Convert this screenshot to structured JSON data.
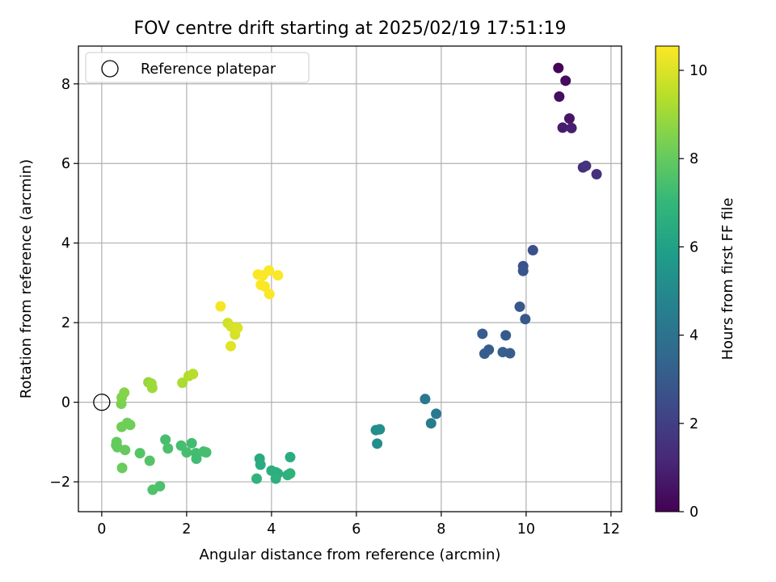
{
  "chart_data": {
    "type": "scatter",
    "title": "FOV centre drift starting at 2025/02/19 17:51:19",
    "xlabel": "Angular distance from reference (arcmin)",
    "ylabel": "Rotation from reference (arcmin)",
    "xlim": [
      -0.55,
      12.25
    ],
    "ylim": [
      -2.75,
      8.95
    ],
    "xticks": [
      0,
      2,
      4,
      6,
      8,
      10,
      12
    ],
    "xtick_labels": [
      "0",
      "2",
      "4",
      "6",
      "8",
      "10",
      "12"
    ],
    "yticks": [
      -2,
      0,
      2,
      4,
      6,
      8
    ],
    "ytick_labels": [
      "−2",
      "0",
      "2",
      "4",
      "6",
      "8"
    ],
    "grid": true,
    "legend": {
      "placement": "upper-left",
      "entries": [
        "Reference platepar"
      ]
    },
    "reference_point": {
      "x": 0,
      "y": 0,
      "name": "Reference platepar"
    },
    "colorbar": {
      "label": "Hours from first FF file",
      "range": [
        0,
        10.55
      ],
      "ticks": [
        0,
        2,
        4,
        6,
        8,
        10
      ],
      "tick_labels": [
        "0",
        "2",
        "4",
        "6",
        "8",
        "10"
      ],
      "colormap": [
        "#440154",
        "#482878",
        "#3e4989",
        "#31688e",
        "#26828e",
        "#1f9e89",
        "#35b779",
        "#6ece58",
        "#b5de2b",
        "#fde725"
      ]
    },
    "points": [
      {
        "x": 10.76,
        "y": 8.4,
        "c": 0.1
      },
      {
        "x": 10.93,
        "y": 8.08,
        "c": 0.3
      },
      {
        "x": 10.78,
        "y": 7.68,
        "c": 0.4
      },
      {
        "x": 11.02,
        "y": 7.13,
        "c": 0.6
      },
      {
        "x": 10.86,
        "y": 6.9,
        "c": 0.8
      },
      {
        "x": 11.07,
        "y": 6.89,
        "c": 0.9
      },
      {
        "x": 11.34,
        "y": 5.9,
        "c": 1.4
      },
      {
        "x": 11.41,
        "y": 5.94,
        "c": 1.6
      },
      {
        "x": 11.66,
        "y": 5.73,
        "c": 1.5
      },
      {
        "x": 10.16,
        "y": 3.82,
        "c": 2.6
      },
      {
        "x": 9.93,
        "y": 3.42,
        "c": 2.7
      },
      {
        "x": 9.93,
        "y": 3.3,
        "c": 2.8
      },
      {
        "x": 9.85,
        "y": 2.4,
        "c": 2.9
      },
      {
        "x": 9.98,
        "y": 2.09,
        "c": 2.9
      },
      {
        "x": 8.97,
        "y": 1.72,
        "c": 3.1
      },
      {
        "x": 9.52,
        "y": 1.68,
        "c": 3.0
      },
      {
        "x": 9.12,
        "y": 1.32,
        "c": 3.1
      },
      {
        "x": 9.02,
        "y": 1.22,
        "c": 3.1
      },
      {
        "x": 9.45,
        "y": 1.26,
        "c": 3.2
      },
      {
        "x": 9.62,
        "y": 1.23,
        "c": 3.1
      },
      {
        "x": 7.62,
        "y": 0.08,
        "c": 4.2
      },
      {
        "x": 7.88,
        "y": -0.29,
        "c": 4.3
      },
      {
        "x": 7.76,
        "y": -0.53,
        "c": 4.4
      },
      {
        "x": 6.46,
        "y": -0.7,
        "c": 5.1
      },
      {
        "x": 6.55,
        "y": -0.68,
        "c": 5.2
      },
      {
        "x": 6.49,
        "y": -1.04,
        "c": 5.2
      },
      {
        "x": 3.72,
        "y": -1.42,
        "c": 6.4
      },
      {
        "x": 3.74,
        "y": -1.57,
        "c": 6.5
      },
      {
        "x": 4.44,
        "y": -1.38,
        "c": 6.5
      },
      {
        "x": 4.0,
        "y": -1.72,
        "c": 6.6
      },
      {
        "x": 4.1,
        "y": -1.76,
        "c": 6.6
      },
      {
        "x": 4.15,
        "y": -1.79,
        "c": 6.6
      },
      {
        "x": 4.38,
        "y": -1.83,
        "c": 6.7
      },
      {
        "x": 4.44,
        "y": -1.79,
        "c": 6.8
      },
      {
        "x": 3.65,
        "y": -1.92,
        "c": 6.8
      },
      {
        "x": 4.1,
        "y": -1.92,
        "c": 6.7
      },
      {
        "x": 1.5,
        "y": -0.94,
        "c": 7.4
      },
      {
        "x": 1.56,
        "y": -1.16,
        "c": 7.5
      },
      {
        "x": 1.87,
        "y": -1.09,
        "c": 7.4
      },
      {
        "x": 2.0,
        "y": -1.26,
        "c": 7.4
      },
      {
        "x": 2.12,
        "y": -1.03,
        "c": 7.3
      },
      {
        "x": 2.22,
        "y": -1.28,
        "c": 7.3
      },
      {
        "x": 2.4,
        "y": -1.24,
        "c": 7.4
      },
      {
        "x": 2.46,
        "y": -1.26,
        "c": 7.4
      },
      {
        "x": 2.23,
        "y": -1.42,
        "c": 7.3
      },
      {
        "x": 1.37,
        "y": -2.11,
        "c": 7.5
      },
      {
        "x": 1.2,
        "y": -2.2,
        "c": 7.6
      },
      {
        "x": 0.9,
        "y": -1.28,
        "c": 7.7
      },
      {
        "x": 1.13,
        "y": -1.47,
        "c": 7.7
      },
      {
        "x": 0.35,
        "y": -1.0,
        "c": 8.0
      },
      {
        "x": 0.34,
        "y": -1.08,
        "c": 8.0
      },
      {
        "x": 0.37,
        "y": -1.13,
        "c": 8.0
      },
      {
        "x": 0.55,
        "y": -1.2,
        "c": 8.0
      },
      {
        "x": 0.48,
        "y": -1.65,
        "c": 8.1
      },
      {
        "x": 0.47,
        "y": -0.62,
        "c": 8.2
      },
      {
        "x": 0.6,
        "y": -0.52,
        "c": 8.2
      },
      {
        "x": 0.67,
        "y": -0.57,
        "c": 8.2
      },
      {
        "x": 0.46,
        "y": -0.04,
        "c": 8.4
      },
      {
        "x": 0.47,
        "y": 0.12,
        "c": 8.5
      },
      {
        "x": 0.53,
        "y": 0.24,
        "c": 8.6
      },
      {
        "x": 1.1,
        "y": 0.5,
        "c": 8.8
      },
      {
        "x": 1.17,
        "y": 0.47,
        "c": 9.0
      },
      {
        "x": 1.19,
        "y": 0.36,
        "c": 9.0
      },
      {
        "x": 1.9,
        "y": 0.49,
        "c": 9.2
      },
      {
        "x": 2.05,
        "y": 0.66,
        "c": 9.3
      },
      {
        "x": 2.15,
        "y": 0.71,
        "c": 9.4
      },
      {
        "x": 2.8,
        "y": 2.41,
        "c": 10.4
      },
      {
        "x": 2.97,
        "y": 1.99,
        "c": 9.8
      },
      {
        "x": 3.05,
        "y": 1.9,
        "c": 9.9
      },
      {
        "x": 3.14,
        "y": 1.7,
        "c": 9.9
      },
      {
        "x": 3.2,
        "y": 1.87,
        "c": 10.0
      },
      {
        "x": 3.04,
        "y": 1.41,
        "c": 10.1
      },
      {
        "x": 3.68,
        "y": 3.21,
        "c": 10.5
      },
      {
        "x": 3.8,
        "y": 3.19,
        "c": 10.5
      },
      {
        "x": 3.94,
        "y": 3.31,
        "c": 10.5
      },
      {
        "x": 4.15,
        "y": 3.19,
        "c": 10.5
      },
      {
        "x": 3.75,
        "y": 2.95,
        "c": 10.5
      },
      {
        "x": 3.84,
        "y": 2.91,
        "c": 10.5
      },
      {
        "x": 3.95,
        "y": 2.72,
        "c": 10.5
      }
    ]
  }
}
